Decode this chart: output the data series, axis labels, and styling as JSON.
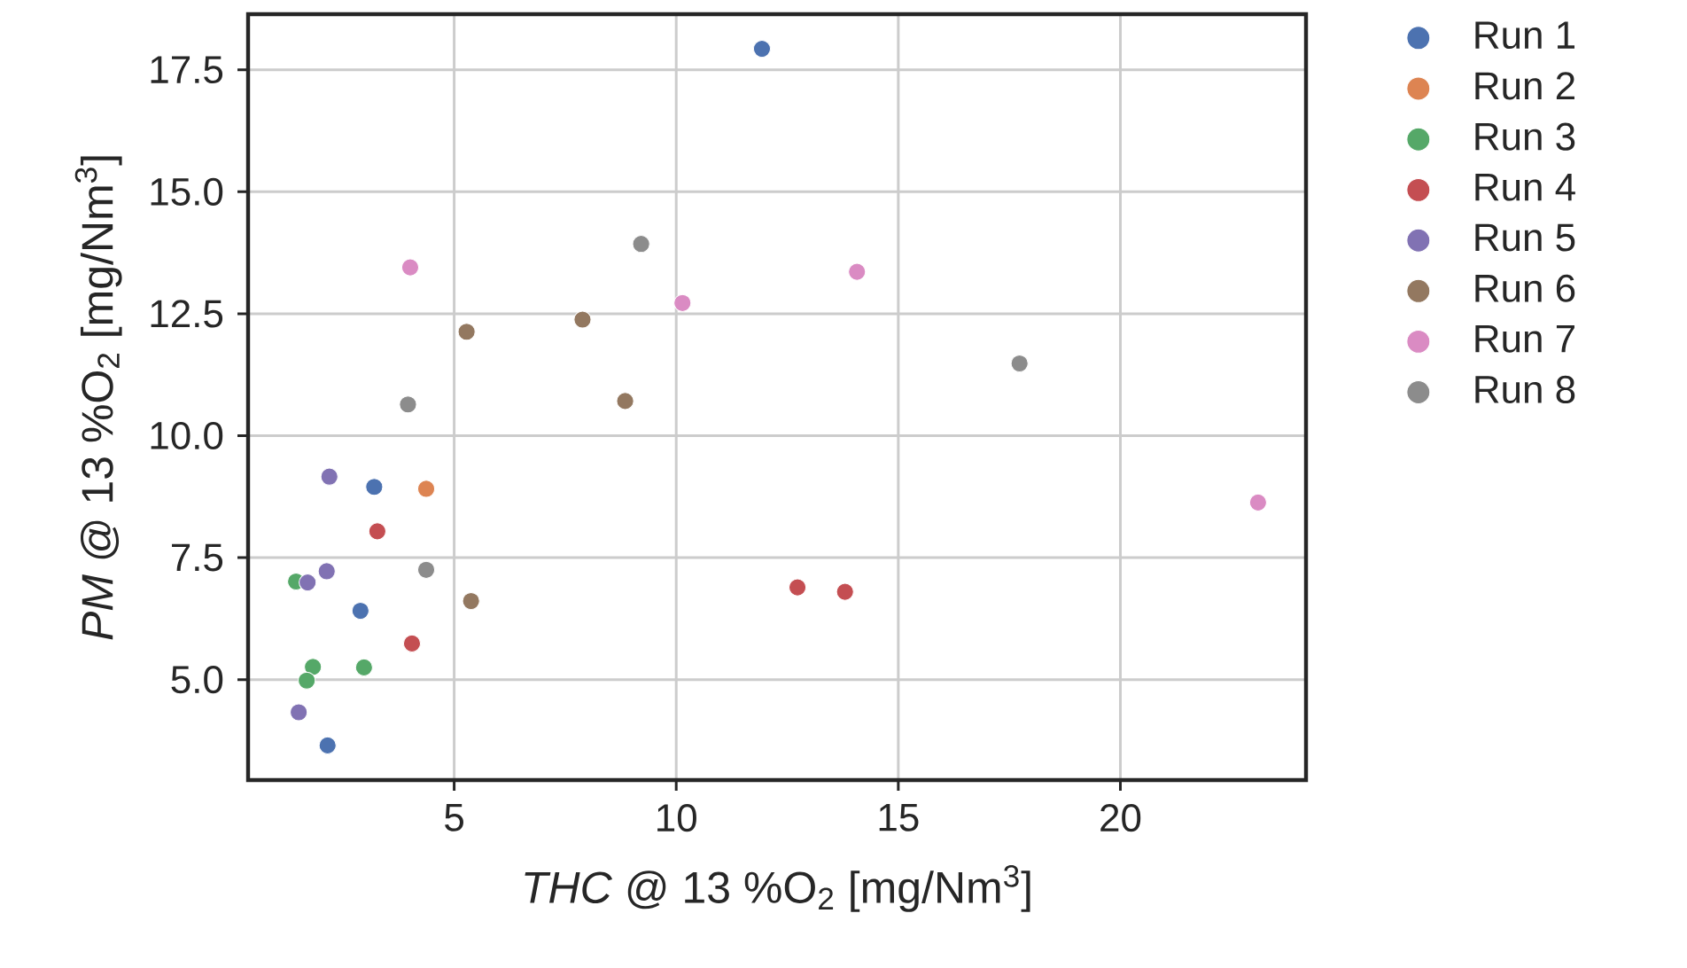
{
  "chart_data": {
    "type": "scatter",
    "xlabel": "*THC* @ 13 %O$_{2}$ [mg/Nm$^{3}$]",
    "ylabel": "*PM* @ 13 %O$_{2}$ [mg/Nm$^{3}$]",
    "xlim": [
      0.36,
      24.18
    ],
    "ylim": [
      2.94,
      18.64
    ],
    "xticks": [
      5,
      10,
      15,
      20
    ],
    "yticks": [
      {
        "value": 5,
        "label": "5.0"
      },
      {
        "value": 7.5,
        "label": "7.5"
      },
      {
        "value": 10,
        "label": "10.0"
      },
      {
        "value": 12.5,
        "label": "12.5"
      },
      {
        "value": 15,
        "label": "15.0"
      },
      {
        "value": 17.5,
        "label": "17.5"
      }
    ],
    "grid": true,
    "legend": "right",
    "marker": "circle",
    "series": [
      {
        "name": "Run 1",
        "color": "#4c72b0",
        "x": [
          11.93,
          3.2,
          2.89,
          2.15
        ],
        "values": [
          17.93,
          8.95,
          6.41,
          3.65
        ]
      },
      {
        "name": "Run 2",
        "color": "#dd8452",
        "x": [
          4.37
        ],
        "values": [
          8.91
        ]
      },
      {
        "name": "Run 3",
        "color": "#55a868",
        "x": [
          1.44,
          1.82,
          1.68,
          2.97
        ],
        "values": [
          7.01,
          5.26,
          4.98,
          5.25
        ]
      },
      {
        "name": "Run 4",
        "color": "#c44e52",
        "x": [
          3.27,
          4.05,
          12.73,
          13.8
        ],
        "values": [
          8.04,
          5.74,
          6.89,
          6.8
        ]
      },
      {
        "name": "Run 5",
        "color": "#8172b3",
        "x": [
          2.19,
          2.13,
          1.7,
          1.5
        ],
        "values": [
          9.16,
          7.22,
          6.99,
          4.33
        ]
      },
      {
        "name": "Run 6",
        "color": "#937860",
        "x": [
          5.28,
          7.89,
          8.85,
          5.38
        ],
        "values": [
          12.13,
          12.38,
          10.71,
          6.61
        ]
      },
      {
        "name": "Run 7",
        "color": "#da8bc3",
        "x": [
          4.01,
          10.14,
          14.07,
          23.1
        ],
        "values": [
          13.45,
          12.72,
          13.36,
          8.63
        ]
      },
      {
        "name": "Run 8",
        "color": "#8c8c8c",
        "x": [
          9.21,
          3.96,
          4.37,
          17.73
        ],
        "values": [
          13.93,
          10.64,
          7.25,
          11.48
        ]
      }
    ]
  }
}
